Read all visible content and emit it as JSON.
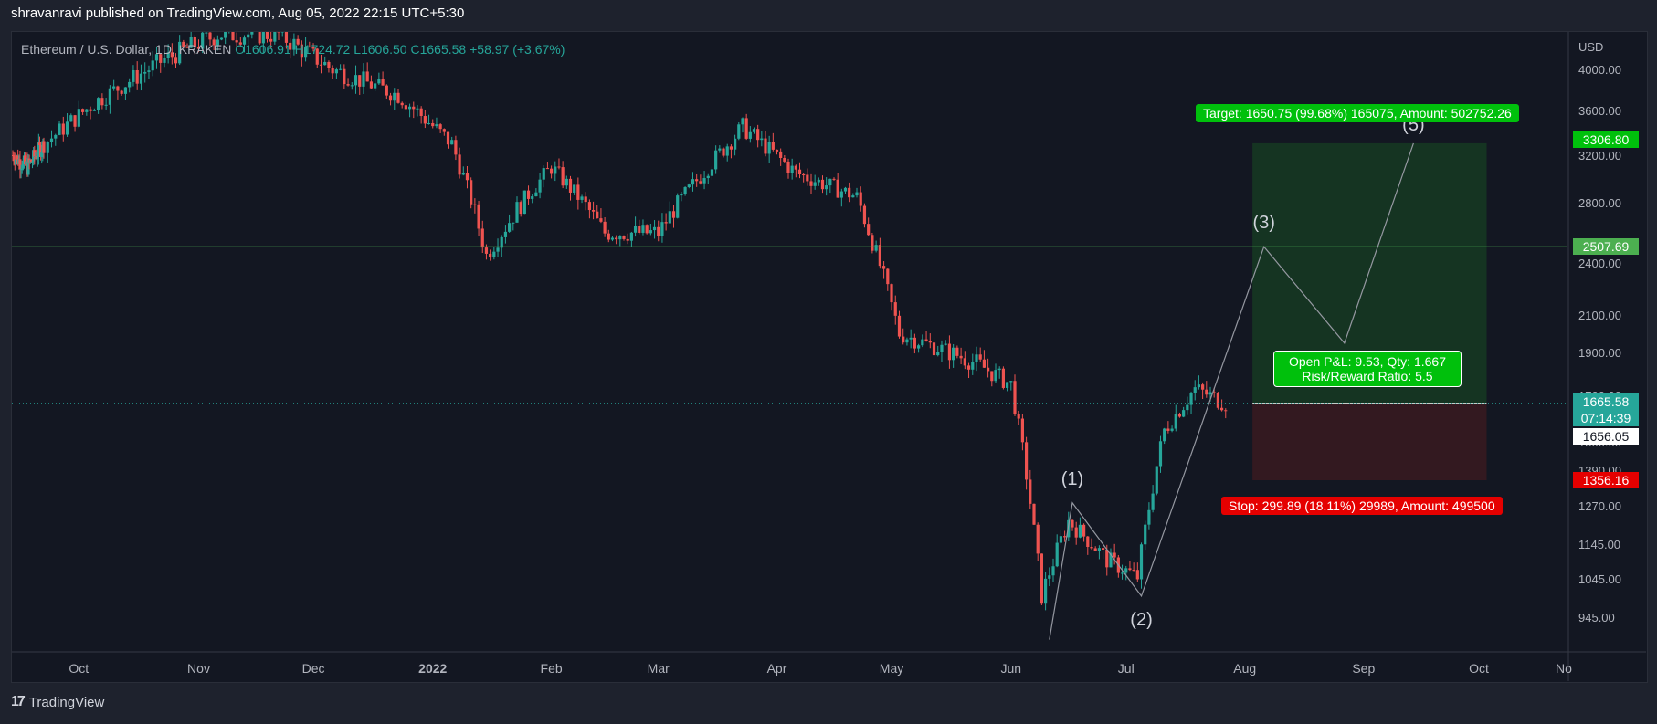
{
  "header": {
    "publisher_text": "shravanravi published on TradingView.com, Aug 05, 2022 22:15 UTC+5:30"
  },
  "legend": {
    "symbol": "Ethereum / U.S. Dollar, 1D, KRAKEN",
    "open": "O1606.91",
    "high": "H1724.72",
    "low": "L1606.50",
    "close": "C1665.58",
    "change": "+58.97 (+3.67%)"
  },
  "footer": {
    "logo_text": "TradingView"
  },
  "colors": {
    "background": "#131722",
    "up": "#26a69a",
    "down": "#ef5350",
    "target_green": "#00c00c",
    "stop_red": "#e50000",
    "level_line": "#4caf50"
  },
  "chart_data": {
    "type": "candlestick",
    "currency": "USD",
    "y_axis_ticks": [
      "4000.00",
      "3600.00",
      "3200.00",
      "2800.00",
      "2400.00",
      "2100.00",
      "1900.00",
      "1700.00",
      "1500.00",
      "1390.00",
      "1270.00",
      "1145.00",
      "1045.00",
      "945.00"
    ],
    "x_axis_ticks": [
      "Oct",
      "Nov",
      "Dec",
      "2022",
      "Feb",
      "Mar",
      "Apr",
      "May",
      "Jun",
      "Jul",
      "Aug",
      "Sep",
      "Oct",
      "No"
    ],
    "ohlc_last": {
      "open": 1606.91,
      "high": 1724.72,
      "low": 1606.5,
      "close": 1665.58
    },
    "price_series_approx": [
      {
        "date": "2021-09-01",
        "close": 3200
      },
      {
        "date": "2021-09-15",
        "close": 3100
      },
      {
        "date": "2021-10-01",
        "close": 3300
      },
      {
        "date": "2021-10-15",
        "close": 3700
      },
      {
        "date": "2021-11-01",
        "close": 4100
      },
      {
        "date": "2021-11-15",
        "close": 4350
      },
      {
        "date": "2021-12-01",
        "close": 4350
      },
      {
        "date": "2021-12-15",
        "close": 4000
      },
      {
        "date": "2022-01-01",
        "close": 3750
      },
      {
        "date": "2022-01-15",
        "close": 3300
      },
      {
        "date": "2022-01-24",
        "close": 2450
      },
      {
        "date": "2022-02-10",
        "close": 3100
      },
      {
        "date": "2022-02-24",
        "close": 2600
      },
      {
        "date": "2022-03-10",
        "close": 2600
      },
      {
        "date": "2022-04-01",
        "close": 3450
      },
      {
        "date": "2022-04-15",
        "close": 3050
      },
      {
        "date": "2022-05-01",
        "close": 2850
      },
      {
        "date": "2022-05-12",
        "close": 2000
      },
      {
        "date": "2022-06-01",
        "close": 1850
      },
      {
        "date": "2022-06-10",
        "close": 1750
      },
      {
        "date": "2022-06-18",
        "close": 1000
      },
      {
        "date": "2022-06-25",
        "close": 1220
      },
      {
        "date": "2022-07-05",
        "close": 1100
      },
      {
        "date": "2022-07-13",
        "close": 1050
      },
      {
        "date": "2022-07-20",
        "close": 1550
      },
      {
        "date": "2022-07-28",
        "close": 1730
      },
      {
        "date": "2022-08-05",
        "close": 1665.58
      }
    ],
    "horizontal_level": 2507.69,
    "current_price": "1665.58",
    "countdown": "07:14:39",
    "entry_price": "1656.05",
    "target_price": "3306.80",
    "stop_price": "1356.16",
    "level_label": "2507.69",
    "wave_labels": [
      "(1)",
      "(2)",
      "(3)",
      "(5)"
    ],
    "wave_points": [
      {
        "label": "",
        "date": "2022-06-20",
        "price": 880
      },
      {
        "label": "(1)",
        "date": "2022-06-26",
        "price": 1280
      },
      {
        "label": "(2)",
        "date": "2022-07-14",
        "price": 1000
      },
      {
        "label": "(3)",
        "date": "2022-08-15",
        "price": 2507.69
      },
      {
        "label": "",
        "date": "2022-09-05",
        "price": 1950
      },
      {
        "label": "(5)",
        "date": "2022-09-23",
        "price": 3306.8
      }
    ]
  },
  "position_tool": {
    "target_text": "Target: 1650.75 (99.68%) 165075, Amount: 502752.26",
    "stop_text": "Stop: 299.89 (18.11%) 29989, Amount: 499500",
    "pnl_line1": "Open P&L: 9.53, Qty: 1.667",
    "pnl_line2": "Risk/Reward Ratio: 5.5"
  }
}
